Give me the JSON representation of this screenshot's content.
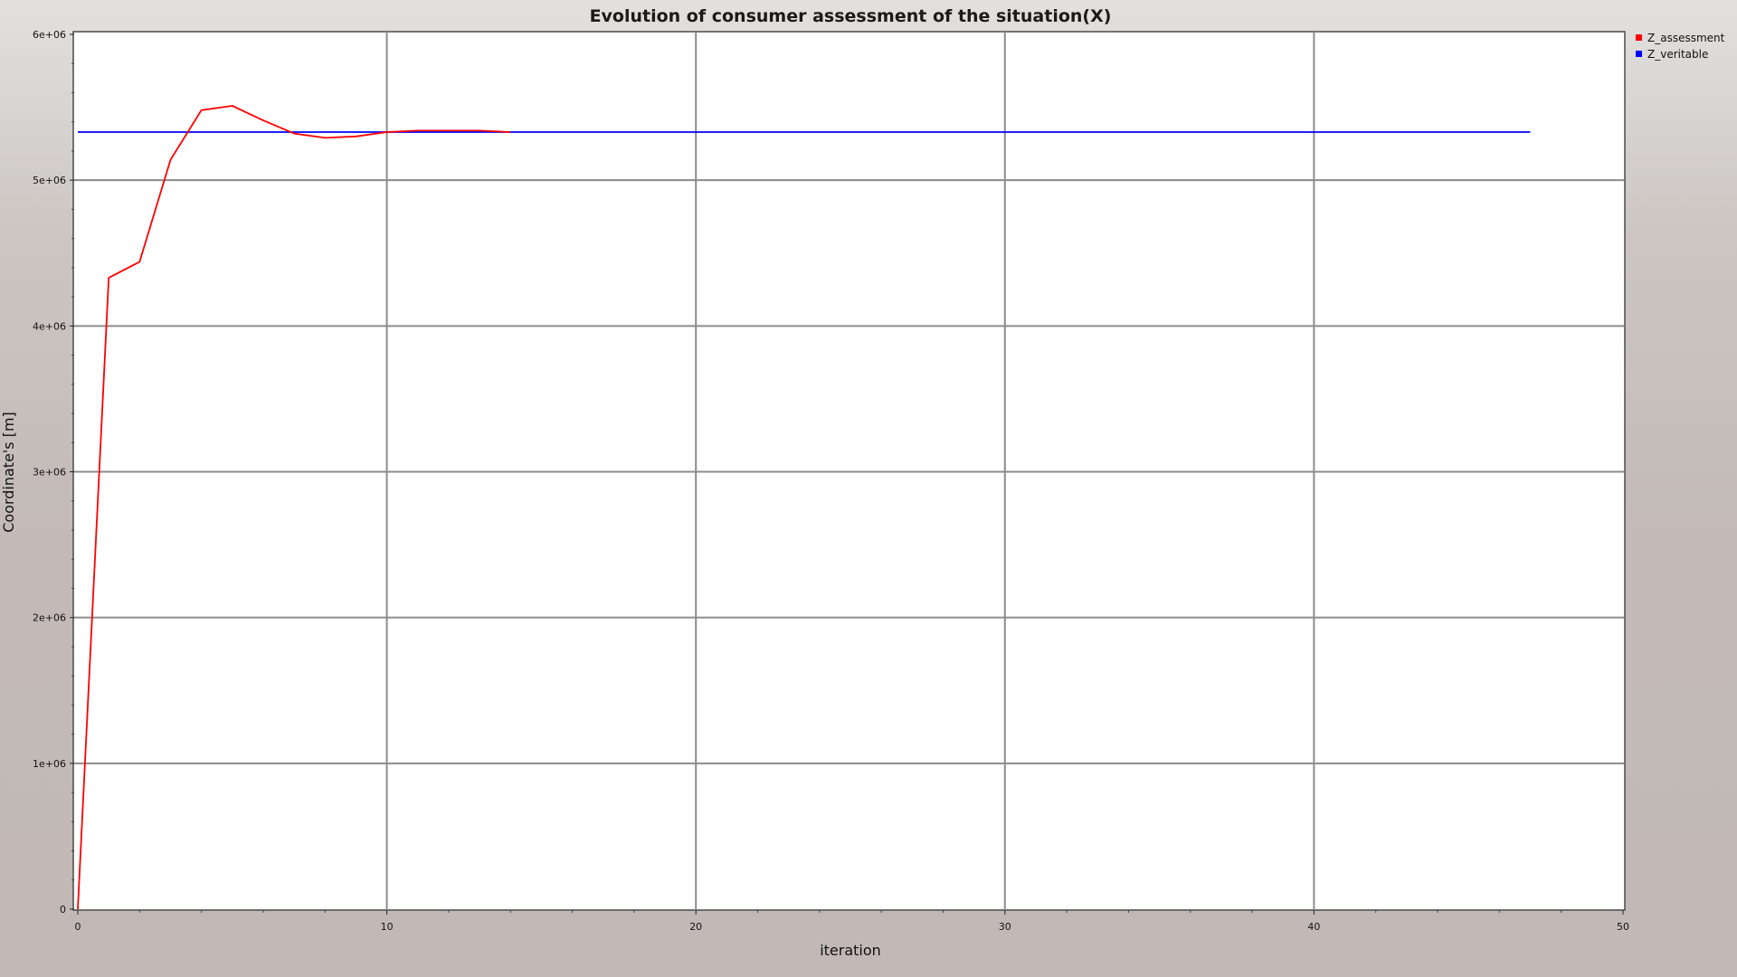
{
  "chart_data": {
    "type": "line",
    "title": "Evolution of consumer assessment of the situation(X)",
    "xlabel": "iteration",
    "ylabel": "Coordinate's [m]",
    "xlim": [
      0,
      50
    ],
    "ylim": [
      0,
      6000000
    ],
    "x_ticks": [
      0,
      10,
      20,
      30,
      40,
      50
    ],
    "x_tick_labels": [
      "0",
      "10",
      "20",
      "30",
      "40",
      "50"
    ],
    "y_ticks": [
      0,
      1000000,
      2000000,
      3000000,
      4000000,
      5000000,
      6000000
    ],
    "y_tick_labels": [
      "0",
      "1e+06",
      "2e+06",
      "3e+06",
      "4e+06",
      "5e+06",
      "6e+06"
    ],
    "grid": true,
    "legend_position": "top-right-outside",
    "series": [
      {
        "name": "Z_assessment",
        "color": "#ff0000",
        "x": [
          0,
          1,
          2,
          3,
          4,
          5,
          6,
          7,
          8,
          9,
          10,
          11,
          12,
          13,
          14
        ],
        "y": [
          0,
          4330000,
          4440000,
          5140000,
          5480000,
          5510000,
          5410000,
          5320000,
          5290000,
          5300000,
          5330000,
          5340000,
          5340000,
          5340000,
          5330000
        ]
      },
      {
        "name": "Z_veritable",
        "color": "#0000ff",
        "x": [
          0,
          47
        ],
        "y": [
          5330000,
          5330000
        ]
      }
    ]
  }
}
